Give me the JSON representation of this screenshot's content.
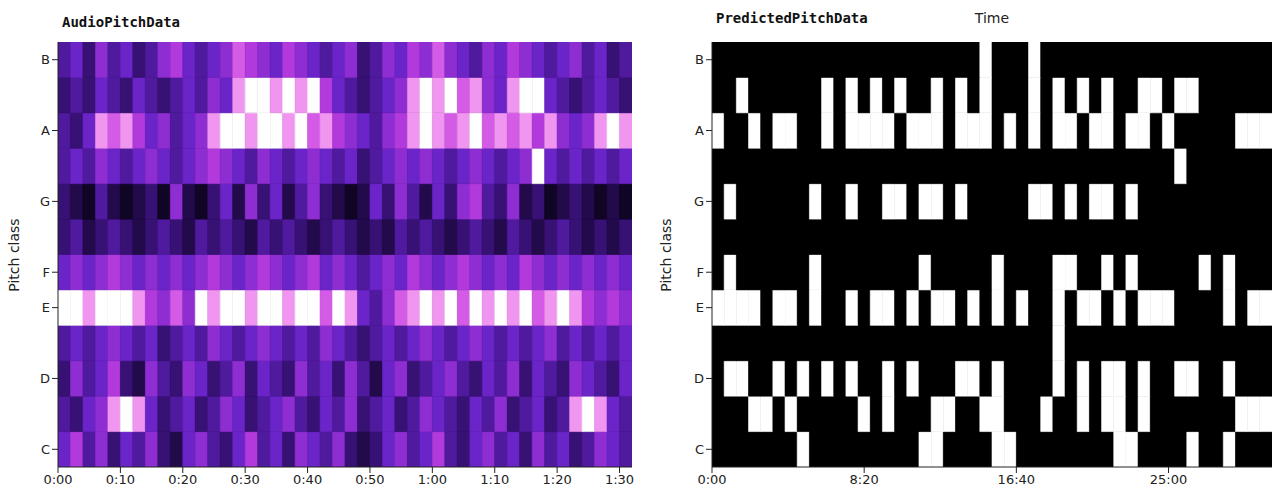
{
  "chart_data": [
    {
      "type": "heatmap",
      "title": "AudioPitchData",
      "y_label": "Pitch class",
      "color": "magma",
      "x": [
        0,
        2,
        4,
        6,
        8,
        10,
        12,
        14,
        16,
        18,
        20,
        22,
        24,
        26,
        28,
        30,
        32,
        34,
        36,
        38,
        40,
        42,
        44,
        46,
        48,
        50,
        52,
        54,
        56,
        58,
        60,
        62,
        64,
        66,
        68,
        70,
        72,
        74,
        76,
        78,
        80,
        82,
        84,
        86,
        88,
        90
      ],
      "y": [
        0,
        1,
        2,
        3,
        4,
        5,
        6,
        7,
        8,
        9,
        10,
        11
      ],
      "xlim": [
        0,
        92
      ],
      "xticks": [
        {
          "value": 0,
          "label": "0:00"
        },
        {
          "value": 10,
          "label": "0:10"
        },
        {
          "value": 20,
          "label": "0:20"
        },
        {
          "value": 30,
          "label": "0:30"
        },
        {
          "value": 40,
          "label": "0:40"
        },
        {
          "value": 50,
          "label": "0:50"
        },
        {
          "value": 60,
          "label": "1:00"
        },
        {
          "value": 70,
          "label": "1:10"
        },
        {
          "value": 80,
          "label": "1:20"
        },
        {
          "value": 90,
          "label": "1:30"
        }
      ],
      "ylim": [
        -0.5,
        11.5
      ],
      "yticks": [
        {
          "value": 0,
          "label": "C"
        },
        {
          "value": 2,
          "label": "D"
        },
        {
          "value": 4,
          "label": "E"
        },
        {
          "value": 5,
          "label": "F"
        },
        {
          "value": 7,
          "label": "G"
        },
        {
          "value": 9,
          "label": "A"
        },
        {
          "value": 11,
          "label": "B"
        }
      ],
      "cells": [
        [
          0.5,
          0.7,
          0.4,
          0.6,
          0.3,
          0.5,
          0.4,
          0.6,
          0.3,
          0.2,
          0.5,
          0.6,
          0.4,
          0.3,
          0.5,
          0.7,
          0.4,
          0.5,
          0.3,
          0.6,
          0.5,
          0.4,
          0.6,
          0.3,
          0.2,
          0.3,
          0.5,
          0.6,
          0.4,
          0.5,
          0.7,
          0.4,
          0.3,
          0.5,
          0.6,
          0.4,
          0.5,
          0.3,
          0.6,
          0.4,
          0.5,
          0.3,
          0.4,
          0.6,
          0.5,
          0.4
        ],
        [
          0.4,
          0.3,
          0.5,
          0.6,
          0.9,
          1,
          0.9,
          0.5,
          0.3,
          0.4,
          0.5,
          0.3,
          0.4,
          0.6,
          0.5,
          0.3,
          0.4,
          0.5,
          0.6,
          0.4,
          0.3,
          0.5,
          0.4,
          0.6,
          0.3,
          0.4,
          0.5,
          0.3,
          0.4,
          0.6,
          0.5,
          0.4,
          0.3,
          0.5,
          0.4,
          0.6,
          0.3,
          0.4,
          0.5,
          0.3,
          0.4,
          0.9,
          1,
          0.9,
          0.5,
          0.4
        ],
        [
          0.3,
          0.6,
          0.4,
          0.5,
          0.7,
          0.3,
          0.2,
          0.6,
          0.4,
          0.3,
          0.6,
          0.5,
          0.3,
          0.4,
          0.6,
          0.3,
          0.5,
          0.4,
          0.3,
          0.6,
          0.4,
          0.5,
          0.3,
          0.6,
          0.4,
          0.2,
          0.5,
          0.6,
          0.3,
          0.4,
          0.5,
          0.6,
          0.4,
          0.3,
          0.5,
          0.4,
          0.6,
          0.3,
          0.5,
          0.4,
          0.3,
          0.6,
          0.5,
          0.4,
          0.3,
          0.5
        ],
        [
          0.4,
          0.5,
          0.4,
          0.5,
          0.6,
          0.5,
          0.4,
          0.5,
          0.3,
          0.4,
          0.5,
          0.4,
          0.6,
          0.5,
          0.4,
          0.5,
          0.6,
          0.5,
          0.4,
          0.5,
          0.4,
          0.6,
          0.5,
          0.4,
          0.3,
          0.4,
          0.5,
          0.4,
          0.5,
          0.6,
          0.5,
          0.4,
          0.5,
          0.6,
          0.5,
          0.4,
          0.5,
          0.4,
          0.5,
          0.6,
          0.4,
          0.5,
          0.4,
          0.5,
          0.4,
          0.5
        ],
        [
          1,
          1,
          0.9,
          1,
          1,
          1,
          0.9,
          0.7,
          0.6,
          0.8,
          0.6,
          1,
          0.9,
          1,
          1,
          0.9,
          1,
          1,
          0.9,
          1,
          1,
          0.8,
          1,
          0.9,
          0.5,
          0.4,
          0.6,
          0.8,
          0.9,
          1,
          0.9,
          1,
          0.8,
          1,
          0.9,
          1,
          0.9,
          1,
          0.8,
          0.9,
          1,
          0.9,
          0.7,
          0.6,
          0.7,
          0.6
        ],
        [
          0.5,
          0.6,
          0.5,
          0.6,
          0.7,
          0.6,
          0.5,
          0.6,
          0.5,
          0.6,
          0.5,
          0.6,
          0.7,
          0.6,
          0.5,
          0.6,
          0.7,
          0.6,
          0.5,
          0.6,
          0.7,
          0.5,
          0.6,
          0.5,
          0.4,
          0.5,
          0.6,
          0.5,
          0.7,
          0.6,
          0.5,
          0.6,
          0.7,
          0.6,
          0.5,
          0.6,
          0.5,
          0.7,
          0.6,
          0.5,
          0.6,
          0.5,
          0.6,
          0.5,
          0.6,
          0.5
        ],
        [
          0.3,
          0.4,
          0.2,
          0.3,
          0.4,
          0.3,
          0.2,
          0.3,
          0.4,
          0.3,
          0.2,
          0.4,
          0.3,
          0.4,
          0.3,
          0.2,
          0.4,
          0.3,
          0.4,
          0.3,
          0.2,
          0.3,
          0.4,
          0.3,
          0.2,
          0.3,
          0.2,
          0.4,
          0.3,
          0.4,
          0.3,
          0.2,
          0.3,
          0.4,
          0.3,
          0.2,
          0.4,
          0.3,
          0.2,
          0.3,
          0.4,
          0.3,
          0.2,
          0.3,
          0.2,
          0.3
        ],
        [
          0.3,
          0.2,
          0.1,
          0.4,
          0.2,
          0.1,
          0.2,
          0.3,
          0.1,
          0.6,
          0.2,
          0.1,
          0.3,
          0.5,
          0.2,
          0.6,
          0.3,
          0.5,
          0.2,
          0.4,
          0.6,
          0.3,
          0.2,
          0.1,
          0.2,
          0.5,
          0.3,
          0.6,
          0.4,
          0.2,
          0.5,
          0.3,
          0.6,
          0.7,
          0.4,
          0.3,
          0.6,
          0.2,
          0.3,
          0.1,
          0.2,
          0.3,
          0.2,
          0.1,
          0.2,
          0.1
        ],
        [
          0.4,
          0.5,
          0.4,
          0.6,
          0.5,
          0.4,
          0.5,
          0.6,
          0.5,
          0.4,
          0.5,
          0.6,
          0.7,
          0.6,
          0.5,
          0.4,
          0.6,
          0.5,
          0.4,
          0.5,
          0.6,
          0.5,
          0.4,
          0.5,
          0.3,
          0.4,
          0.5,
          0.6,
          0.5,
          0.6,
          0.5,
          0.4,
          0.5,
          0.6,
          0.5,
          0.4,
          0.5,
          0.6,
          1,
          0.5,
          0.4,
          0.5,
          0.4,
          0.5,
          0.4,
          0.5
        ],
        [
          0.4,
          0.3,
          0.5,
          0.9,
          0.8,
          0.9,
          0.7,
          0.5,
          0.6,
          0.4,
          0.5,
          0.6,
          0.9,
          1,
          1,
          0.9,
          1,
          1,
          0.9,
          1,
          0.8,
          0.9,
          0.7,
          0.6,
          0.5,
          0.4,
          0.6,
          0.7,
          0.9,
          1,
          0.9,
          0.8,
          0.9,
          1,
          0.8,
          0.9,
          0.8,
          0.9,
          0.7,
          0.9,
          0.6,
          0.5,
          0.6,
          0.9,
          1,
          0.9
        ],
        [
          0.3,
          0.4,
          0.3,
          0.5,
          0.4,
          0.3,
          0.5,
          0.4,
          0.3,
          0.4,
          0.5,
          0.4,
          0.6,
          0.5,
          0.9,
          1,
          1,
          0.9,
          1,
          0.9,
          1,
          0.7,
          0.5,
          0.4,
          0.3,
          0.4,
          0.5,
          0.6,
          0.9,
          1,
          0.9,
          1,
          0.8,
          0.9,
          0.6,
          0.5,
          0.9,
          1,
          1,
          0.5,
          0.4,
          0.3,
          0.4,
          0.5,
          0.4,
          0.3
        ],
        [
          0.4,
          0.5,
          0.3,
          0.6,
          0.4,
          0.5,
          0.3,
          0.4,
          0.6,
          0.7,
          0.5,
          0.4,
          0.5,
          0.6,
          0.8,
          0.7,
          0.6,
          0.5,
          0.7,
          0.6,
          0.5,
          0.4,
          0.5,
          0.6,
          0.3,
          0.4,
          0.6,
          0.5,
          0.7,
          0.6,
          0.8,
          0.6,
          0.5,
          0.4,
          0.6,
          0.5,
          0.7,
          0.6,
          0.5,
          0.4,
          0.5,
          0.6,
          0.4,
          0.5,
          0.3,
          0.4
        ]
      ]
    },
    {
      "type": "heatmap",
      "title": "PredictedPitchData",
      "x_label": "Time",
      "y_label": "Pitch class",
      "color": "gray",
      "x": [
        0,
        40,
        80,
        120,
        160,
        200,
        240,
        280,
        320,
        360,
        400,
        440,
        480,
        520,
        560,
        600,
        640,
        680,
        720,
        760,
        800,
        840,
        880,
        920,
        960,
        1000,
        1040,
        1080,
        1120,
        1160,
        1200,
        1240,
        1280,
        1320,
        1360,
        1400,
        1440,
        1480,
        1520,
        1560,
        1600,
        1640,
        1680,
        1720,
        1760,
        1800
      ],
      "y": [
        0,
        1,
        2,
        3,
        4,
        5,
        6,
        7,
        8,
        9,
        10,
        11
      ],
      "xlim": [
        0,
        1840
      ],
      "xticks": [
        {
          "value": 0,
          "label": "0:00"
        },
        {
          "value": 500,
          "label": "8:20"
        },
        {
          "value": 1000,
          "label": "16:40"
        },
        {
          "value": 1500,
          "label": "25:00"
        }
      ],
      "ylim": [
        -0.5,
        11.5
      ],
      "yticks": [
        {
          "value": 0,
          "label": "C"
        },
        {
          "value": 2,
          "label": "D"
        },
        {
          "value": 4,
          "label": "E"
        },
        {
          "value": 5,
          "label": "F"
        },
        {
          "value": 7,
          "label": "G"
        },
        {
          "value": 9,
          "label": "A"
        },
        {
          "value": 11,
          "label": "B"
        }
      ],
      "cells": [
        [
          0,
          0,
          0,
          0,
          0,
          0,
          0,
          1,
          0,
          0,
          0,
          0,
          0,
          0,
          0,
          0,
          0,
          1,
          1,
          0,
          0,
          0,
          0,
          1,
          1,
          0,
          0,
          0,
          0,
          0,
          0,
          0,
          0,
          1,
          1,
          0,
          0,
          0,
          0,
          1,
          0,
          0,
          1,
          0,
          0,
          0
        ],
        [
          0,
          0,
          0,
          1,
          1,
          0,
          1,
          0,
          0,
          0,
          0,
          0,
          1,
          0,
          1,
          0,
          0,
          0,
          1,
          1,
          0,
          0,
          1,
          1,
          0,
          0,
          0,
          1,
          0,
          0,
          1,
          0,
          1,
          1,
          0,
          1,
          0,
          0,
          0,
          0,
          0,
          0,
          0,
          1,
          1,
          1
        ],
        [
          0,
          1,
          1,
          0,
          0,
          1,
          0,
          1,
          0,
          1,
          0,
          1,
          0,
          0,
          1,
          0,
          1,
          0,
          0,
          0,
          1,
          1,
          0,
          1,
          0,
          0,
          0,
          0,
          1,
          0,
          1,
          0,
          1,
          1,
          0,
          1,
          0,
          0,
          1,
          1,
          0,
          0,
          1,
          0,
          0,
          0
        ],
        [
          0,
          0,
          0,
          0,
          0,
          0,
          0,
          0,
          0,
          0,
          0,
          0,
          0,
          0,
          0,
          0,
          0,
          0,
          0,
          0,
          0,
          0,
          0,
          0,
          0,
          0,
          0,
          0,
          1,
          0,
          0,
          0,
          0,
          0,
          0,
          0,
          0,
          0,
          0,
          0,
          0,
          0,
          0,
          0,
          0,
          0
        ],
        [
          1,
          1,
          1,
          1,
          0,
          1,
          1,
          0,
          1,
          0,
          0,
          1,
          0,
          1,
          1,
          0,
          1,
          0,
          1,
          1,
          0,
          1,
          0,
          1,
          0,
          1,
          0,
          0,
          1,
          0,
          1,
          1,
          0,
          1,
          0,
          1,
          1,
          1,
          0,
          0,
          0,
          0,
          1,
          0,
          1,
          1
        ],
        [
          0,
          1,
          0,
          0,
          0,
          0,
          0,
          0,
          1,
          0,
          0,
          0,
          0,
          0,
          0,
          0,
          0,
          1,
          0,
          0,
          0,
          0,
          0,
          1,
          0,
          0,
          0,
          0,
          1,
          1,
          0,
          0,
          1,
          0,
          1,
          0,
          0,
          0,
          0,
          0,
          1,
          0,
          1,
          0,
          0,
          0
        ],
        [
          0,
          0,
          0,
          0,
          0,
          0,
          0,
          0,
          0,
          0,
          0,
          0,
          0,
          0,
          0,
          0,
          0,
          0,
          0,
          0,
          0,
          0,
          0,
          0,
          0,
          0,
          0,
          0,
          0,
          0,
          0,
          0,
          0,
          0,
          0,
          0,
          0,
          0,
          0,
          0,
          0,
          0,
          0,
          0,
          0,
          0
        ],
        [
          0,
          1,
          0,
          0,
          0,
          0,
          0,
          0,
          1,
          0,
          0,
          1,
          0,
          0,
          1,
          1,
          0,
          1,
          1,
          0,
          1,
          0,
          0,
          0,
          0,
          0,
          1,
          1,
          0,
          1,
          0,
          1,
          1,
          0,
          1,
          0,
          0,
          0,
          0,
          0,
          0,
          0,
          0,
          0,
          0,
          0
        ],
        [
          0,
          0,
          0,
          0,
          0,
          0,
          0,
          0,
          0,
          0,
          0,
          0,
          0,
          0,
          0,
          0,
          0,
          0,
          0,
          0,
          0,
          0,
          0,
          0,
          0,
          0,
          0,
          0,
          0,
          0,
          0,
          0,
          0,
          0,
          0,
          0,
          0,
          0,
          1,
          0,
          0,
          0,
          0,
          0,
          0,
          0
        ],
        [
          1,
          0,
          0,
          1,
          0,
          1,
          1,
          0,
          0,
          1,
          0,
          1,
          1,
          1,
          1,
          0,
          1,
          1,
          1,
          0,
          1,
          1,
          1,
          0,
          1,
          0,
          1,
          0,
          1,
          1,
          0,
          1,
          1,
          0,
          1,
          1,
          0,
          1,
          0,
          0,
          0,
          0,
          0,
          1,
          1,
          1
        ],
        [
          0,
          0,
          1,
          0,
          0,
          0,
          0,
          0,
          0,
          1,
          0,
          1,
          0,
          1,
          0,
          1,
          0,
          0,
          1,
          0,
          1,
          0,
          1,
          0,
          0,
          0,
          1,
          0,
          1,
          0,
          1,
          0,
          1,
          0,
          0,
          1,
          1,
          0,
          1,
          1,
          0,
          0,
          0,
          0,
          0,
          0
        ],
        [
          0,
          0,
          0,
          0,
          0,
          0,
          0,
          0,
          0,
          0,
          0,
          0,
          0,
          0,
          0,
          0,
          0,
          0,
          0,
          0,
          0,
          0,
          1,
          0,
          0,
          0,
          1,
          0,
          0,
          0,
          0,
          0,
          0,
          0,
          0,
          0,
          0,
          0,
          0,
          0,
          0,
          0,
          0,
          0,
          0,
          0
        ]
      ]
    }
  ]
}
